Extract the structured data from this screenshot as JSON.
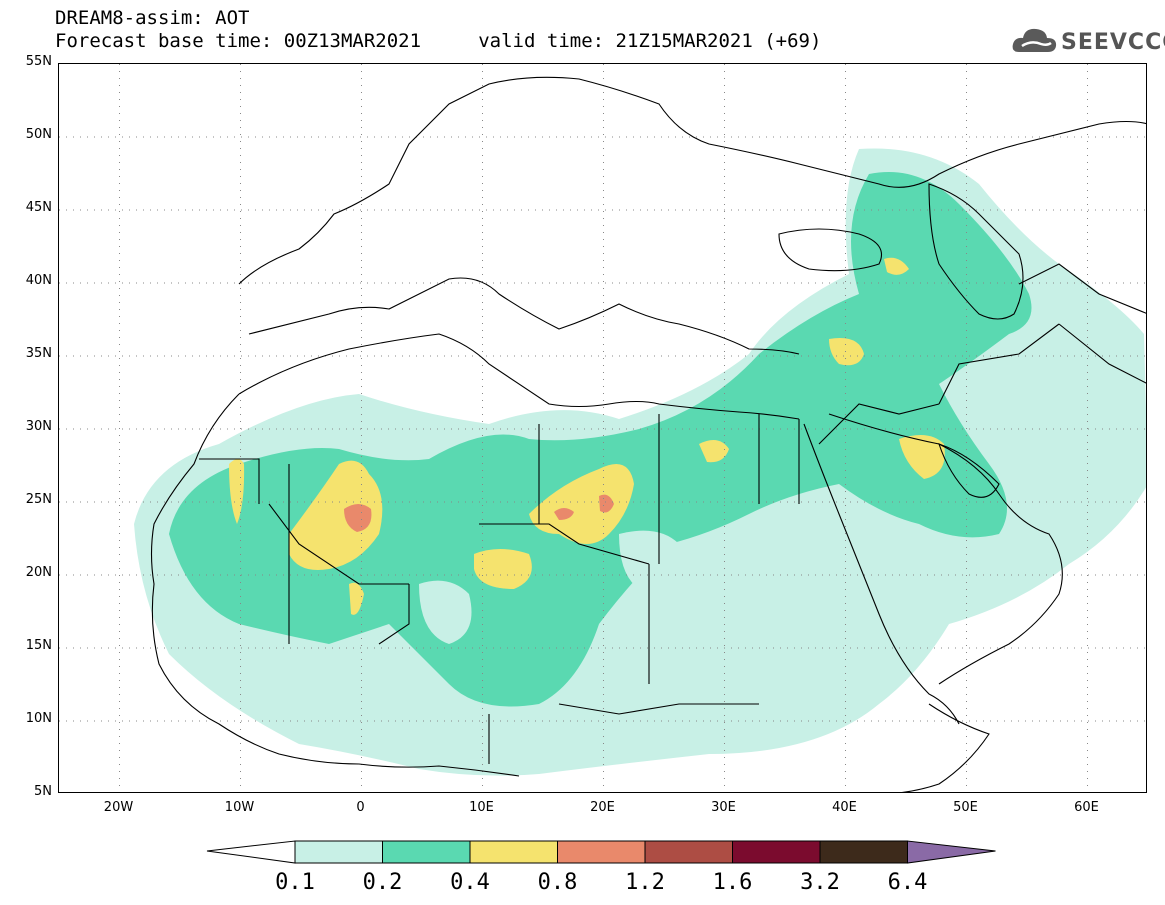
{
  "header": {
    "title_line1": "DREAM8-assim: AOT",
    "title_line2": "Forecast base time: 00Z13MAR2021     valid time: 21Z15MAR2021 (+69)"
  },
  "logo": {
    "text": "SEEVCCC",
    "icon": "cloud-icon",
    "color": "#555555"
  },
  "map": {
    "lon_range": [
      -25,
      65
    ],
    "lat_range": [
      5,
      55
    ],
    "grid": true,
    "lat_ticks": [
      "55N",
      "50N",
      "45N",
      "40N",
      "35N",
      "30N",
      "25N",
      "20N",
      "15N",
      "10N",
      "5N"
    ],
    "lon_ticks": [
      "20W",
      "10W",
      "0",
      "10E",
      "20E",
      "30E",
      "40E",
      "50E",
      "60E"
    ]
  },
  "legend": {
    "labels": [
      "0.1",
      "0.2",
      "0.4",
      "0.8",
      "1.2",
      "1.6",
      "3.2",
      "6.4"
    ],
    "colors": [
      "#ffffff",
      "#c8f0e6",
      "#5ad9b1",
      "#f5e36e",
      "#e9896b",
      "#ad4d44",
      "#7b0b2e",
      "#3d2a1b",
      "#8a6aa6"
    ]
  }
}
